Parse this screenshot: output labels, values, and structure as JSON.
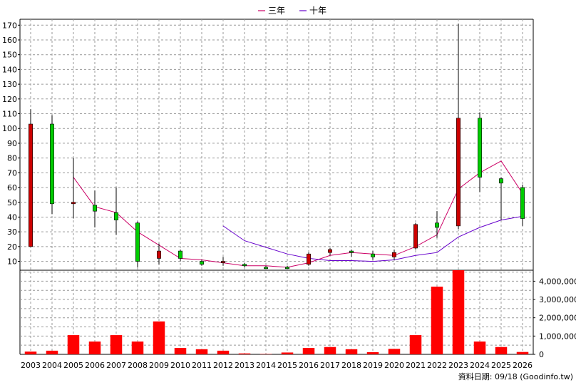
{
  "legend": [
    {
      "label": "三年",
      "color": "#cc0066"
    },
    {
      "label": "十年",
      "color": "#6600cc"
    }
  ],
  "footer": "資料日期: 09/18  (Goodinfo.tw)",
  "colors": {
    "up": "#00cc00",
    "down": "#cc0000",
    "volume": "#ff0000",
    "grid": "#999999"
  },
  "chart_data": {
    "type": "candlestick+line+bar",
    "categories": [
      "2003",
      "2004",
      "2005",
      "2006",
      "2007",
      "2008",
      "2009",
      "2010",
      "2011",
      "2012",
      "2013",
      "2014",
      "2015",
      "2016",
      "2017",
      "2018",
      "2019",
      "2020",
      "2021",
      "2022",
      "2023",
      "2024",
      "2025",
      "2026"
    ],
    "price_axis": {
      "ylim": [
        4,
        174
      ],
      "ticks": [
        10,
        20,
        30,
        40,
        50,
        60,
        70,
        80,
        90,
        100,
        110,
        120,
        130,
        140,
        150,
        160,
        170
      ]
    },
    "volume_axis": {
      "ylim": [
        0,
        4600000
      ],
      "ticks": [
        0,
        1000000,
        2000000,
        3000000,
        4000000
      ],
      "tick_labels": [
        "0",
        "1,000,000",
        "2,000,000",
        "3,000,000",
        "4,000,000"
      ]
    },
    "candles": [
      {
        "open": 103,
        "high": 113,
        "low": 20,
        "close": 20
      },
      {
        "open": 49,
        "high": 109,
        "low": 42,
        "close": 103
      },
      {
        "open": 50,
        "high": 80,
        "low": 39,
        "close": 49
      },
      {
        "open": 44,
        "high": 58,
        "low": 33,
        "close": 48
      },
      {
        "open": 38,
        "high": 60,
        "low": 28,
        "close": 43
      },
      {
        "open": 10,
        "high": 37,
        "low": 6,
        "close": 36
      },
      {
        "open": 17,
        "high": 22,
        "low": 8,
        "close": 12
      },
      {
        "open": 12,
        "high": 18,
        "low": 10,
        "close": 17
      },
      {
        "open": 8,
        "high": 11,
        "low": 7,
        "close": 10
      },
      {
        "open": 10,
        "high": 13,
        "low": 7,
        "close": 9
      },
      {
        "open": 7,
        "high": 9,
        "low": 6,
        "close": 8
      },
      {
        "open": 6,
        "high": 7,
        "low": 5,
        "close": 6
      },
      {
        "open": 6,
        "high": 7,
        "low": 5,
        "close": 6
      },
      {
        "open": 15,
        "high": 16,
        "low": 7,
        "close": 8
      },
      {
        "open": 18,
        "high": 19,
        "low": 14,
        "close": 16
      },
      {
        "open": 16,
        "high": 18,
        "low": 13,
        "close": 17
      },
      {
        "open": 13,
        "high": 17,
        "low": 11,
        "close": 15
      },
      {
        "open": 16,
        "high": 18,
        "low": 11,
        "close": 13
      },
      {
        "open": 35,
        "high": 36,
        "low": 18,
        "close": 19
      },
      {
        "open": 33,
        "high": 44,
        "low": 26,
        "close": 36
      },
      {
        "open": 107,
        "high": 171,
        "low": 32,
        "close": 34
      },
      {
        "open": 67,
        "high": 111,
        "low": 57,
        "close": 107
      },
      {
        "open": 63,
        "high": 67,
        "low": 38,
        "close": 66
      },
      {
        "open": 39,
        "high": 62,
        "low": 34,
        "close": 60
      }
    ],
    "series": [
      {
        "name": "三年",
        "values": [
          null,
          null,
          67,
          47,
          43,
          30,
          21,
          12,
          11,
          9,
          7,
          7,
          6,
          9,
          14,
          16,
          15,
          14,
          20,
          28,
          59,
          70,
          78,
          56
        ]
      },
      {
        "name": "十年",
        "values": [
          null,
          null,
          null,
          null,
          null,
          null,
          null,
          null,
          null,
          null,
          null,
          null,
          null,
          null,
          null,
          null,
          null,
          null,
          null,
          null,
          null,
          null,
          null,
          null
        ]
      },
      {
        "name": "十年_plot",
        "values": [
          null,
          null,
          null,
          null,
          null,
          null,
          null,
          null,
          null,
          34,
          24,
          19.5,
          15,
          12,
          10.5,
          10.5,
          10,
          11,
          14,
          16,
          26.5,
          33,
          38,
          40.5
        ]
      }
    ],
    "volume": [
      150000,
      200000,
      1050000,
      700000,
      1050000,
      700000,
      1800000,
      350000,
      280000,
      200000,
      50000,
      20000,
      100000,
      350000,
      400000,
      280000,
      120000,
      300000,
      1050000,
      3700000,
      4600000,
      700000,
      400000,
      130000
    ],
    "grid": true,
    "legend_position": "top-center"
  }
}
